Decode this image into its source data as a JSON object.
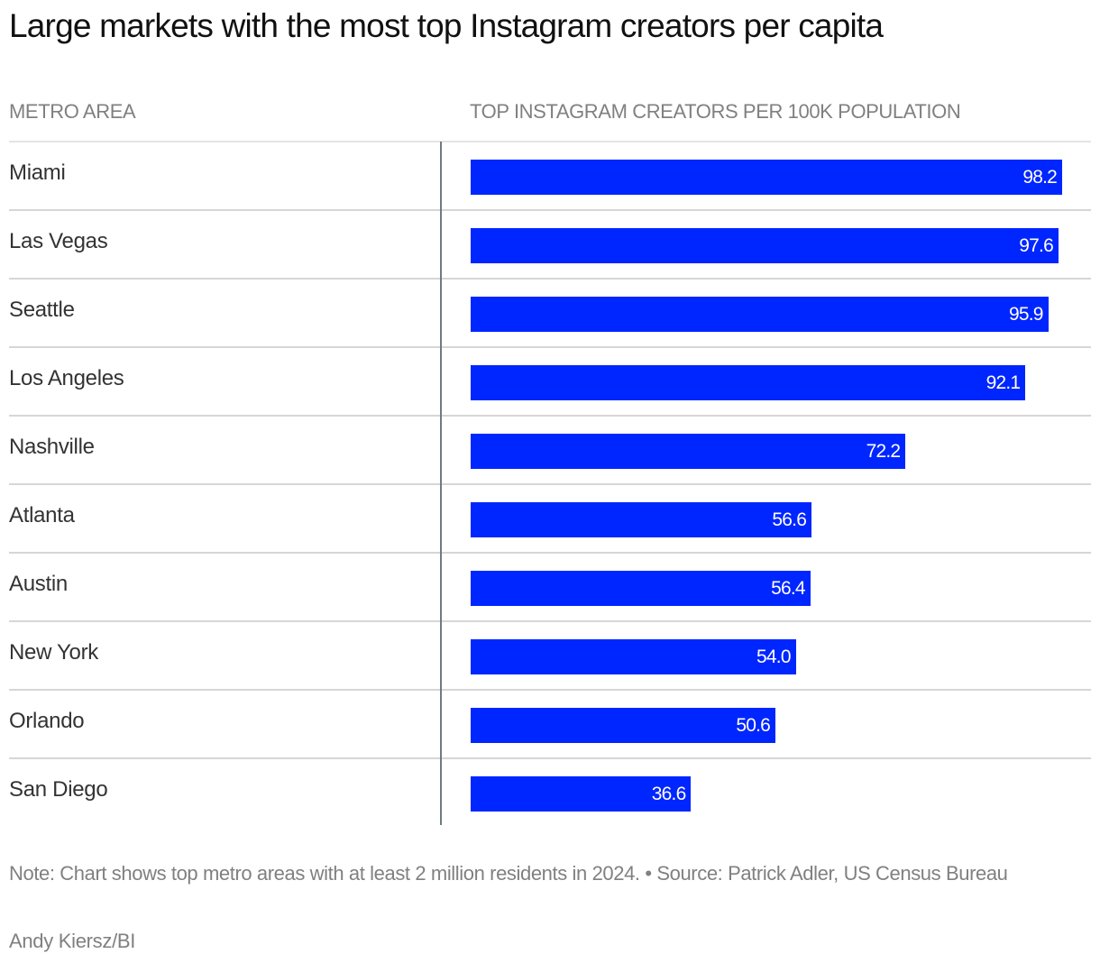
{
  "chart_data": {
    "type": "bar",
    "orientation": "horizontal",
    "title": "Large markets with the most top Instagram creators per capita",
    "category_header": "METRO AREA",
    "value_header": "TOP INSTAGRAM CREATORS PER 100K POPULATION",
    "categories": [
      "Miami",
      "Las Vegas",
      "Seattle",
      "Los Angeles",
      "Nashville",
      "Atlanta",
      "Austin",
      "New York",
      "Orlando",
      "San Diego"
    ],
    "values": [
      98.2,
      97.6,
      95.9,
      92.1,
      72.2,
      56.6,
      56.4,
      54.0,
      50.6,
      36.6
    ],
    "value_labels": [
      "98.2",
      "97.6",
      "95.9",
      "92.1",
      "72.2",
      "56.6",
      "56.4",
      "54.0",
      "50.6",
      "36.6"
    ],
    "xlim": [
      0,
      103
    ],
    "bar_color": "#0026ff"
  },
  "footer": {
    "note": "Note: Chart shows top metro areas with at least 2 million residents in 2024. • Source: Patrick Adler, US Census Bureau",
    "credit": "Andy Kiersz/BI"
  }
}
